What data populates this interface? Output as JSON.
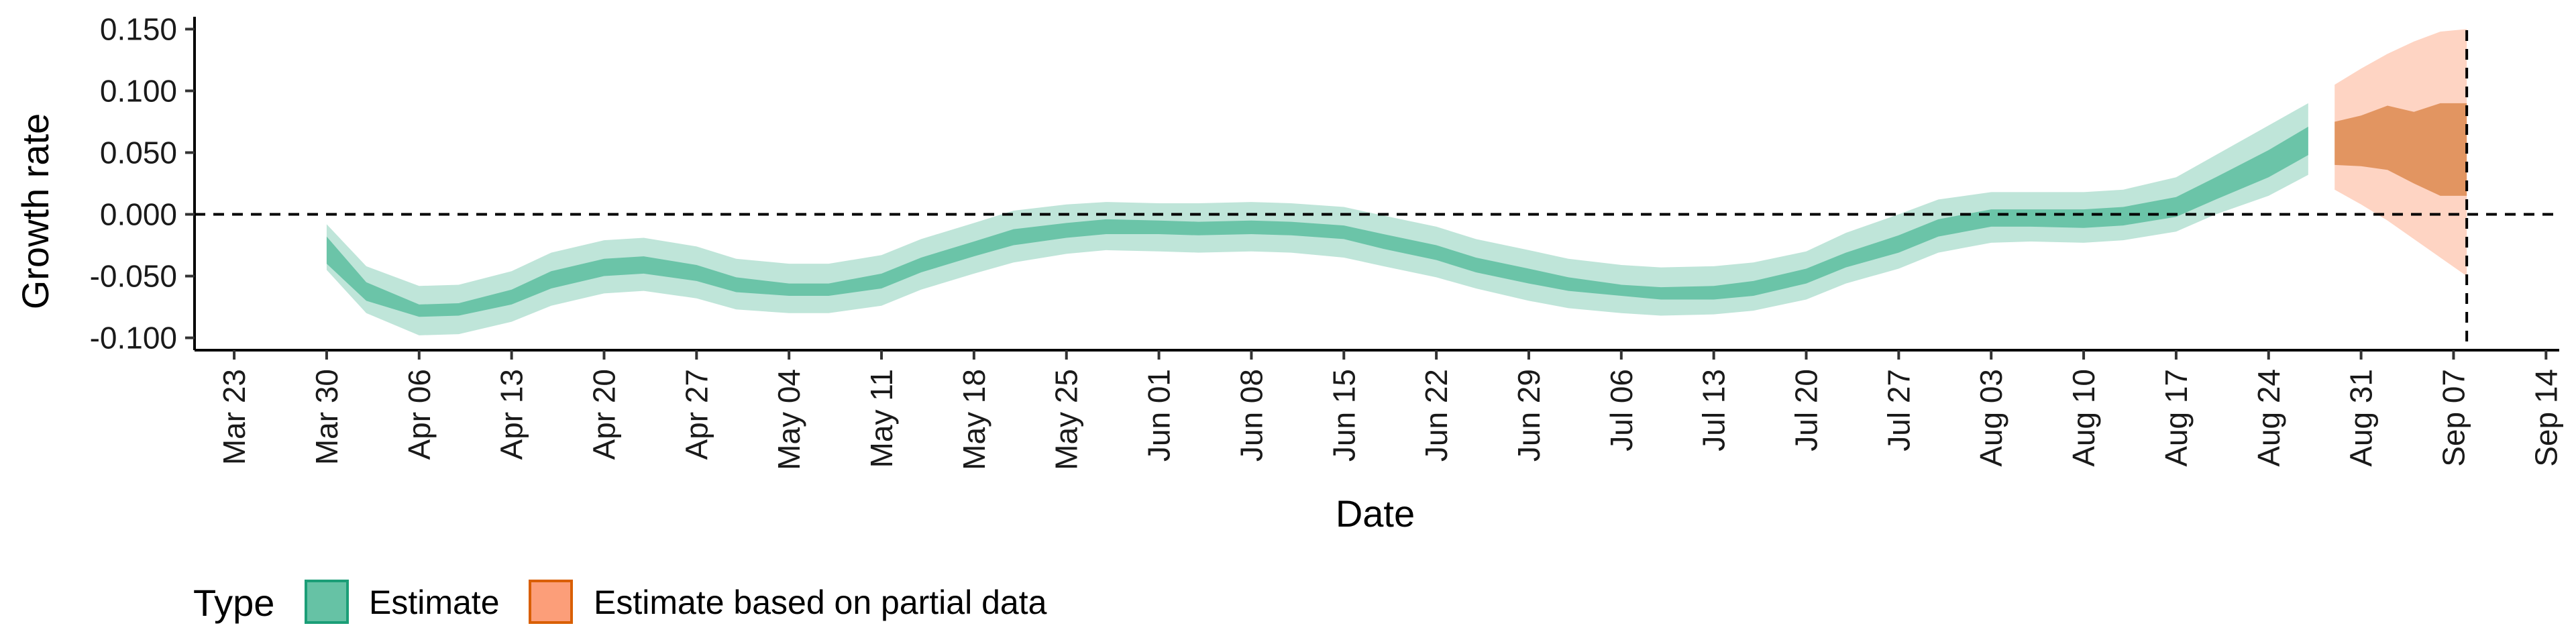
{
  "chart_data": {
    "type": "area",
    "xlabel": "Date",
    "ylabel": "Growth rate",
    "ylim": [
      -0.11,
      0.16
    ],
    "xlim": [
      "2020-03-20",
      "2020-09-15"
    ],
    "x_tick_labels": [
      "Mar 23",
      "Mar 30",
      "Apr 06",
      "Apr 13",
      "Apr 20",
      "Apr 27",
      "May 04",
      "May 11",
      "May 18",
      "May 25",
      "Jun 01",
      "Jun 08",
      "Jun 15",
      "Jun 22",
      "Jun 29",
      "Jul 06",
      "Jul 13",
      "Jul 20",
      "Jul 27",
      "Aug 03",
      "Aug 10",
      "Aug 17",
      "Aug 24",
      "Aug 31",
      "Sep 07",
      "Sep 14"
    ],
    "x_tick_dates": [
      "2020-03-23",
      "2020-03-30",
      "2020-04-06",
      "2020-04-13",
      "2020-04-20",
      "2020-04-27",
      "2020-05-04",
      "2020-05-11",
      "2020-05-18",
      "2020-05-25",
      "2020-06-01",
      "2020-06-08",
      "2020-06-15",
      "2020-06-22",
      "2020-06-29",
      "2020-07-06",
      "2020-07-13",
      "2020-07-20",
      "2020-07-27",
      "2020-08-03",
      "2020-08-10",
      "2020-08-17",
      "2020-08-24",
      "2020-08-31",
      "2020-09-07",
      "2020-09-14"
    ],
    "y_ticks": [
      -0.1,
      -0.05,
      0,
      0.05,
      0.1,
      0.15
    ],
    "y_tick_labels": [
      "-0.100",
      "-0.050",
      "0.000",
      "0.050",
      "0.100",
      "0.150"
    ],
    "reference_lines": {
      "horizontal_y": 0,
      "vertical_x": "2020-09-08",
      "style": "dashed"
    },
    "grid": false,
    "legend": {
      "title": "Type",
      "position": "bottom-left",
      "entries": [
        "Estimate",
        "Estimate based on partial data"
      ]
    },
    "series": [
      {
        "name": "Estimate",
        "color": "#66c2a5",
        "dates": [
          "2020-03-30",
          "2020-04-02",
          "2020-04-06",
          "2020-04-09",
          "2020-04-13",
          "2020-04-16",
          "2020-04-20",
          "2020-04-23",
          "2020-04-27",
          "2020-04-30",
          "2020-05-04",
          "2020-05-07",
          "2020-05-11",
          "2020-05-14",
          "2020-05-18",
          "2020-05-21",
          "2020-05-25",
          "2020-05-28",
          "2020-06-01",
          "2020-06-04",
          "2020-06-08",
          "2020-06-11",
          "2020-06-15",
          "2020-06-18",
          "2020-06-22",
          "2020-06-25",
          "2020-06-29",
          "2020-07-02",
          "2020-07-06",
          "2020-07-09",
          "2020-07-13",
          "2020-07-16",
          "2020-07-20",
          "2020-07-23",
          "2020-07-27",
          "2020-07-30",
          "2020-08-03",
          "2020-08-06",
          "2020-08-10",
          "2020-08-13",
          "2020-08-17",
          "2020-08-20",
          "2020-08-24",
          "2020-08-27"
        ],
        "median": [
          -0.028,
          -0.062,
          -0.078,
          -0.077,
          -0.067,
          -0.053,
          -0.043,
          -0.041,
          -0.048,
          -0.057,
          -0.061,
          -0.061,
          -0.054,
          -0.041,
          -0.028,
          -0.019,
          -0.013,
          -0.01,
          -0.011,
          -0.012,
          -0.011,
          -0.012,
          -0.015,
          -0.022,
          -0.031,
          -0.041,
          -0.05,
          -0.057,
          -0.062,
          -0.064,
          -0.063,
          -0.06,
          -0.05,
          -0.037,
          -0.024,
          -0.011,
          -0.003,
          -0.003,
          -0.004,
          -0.002,
          0.006,
          0.02,
          0.04,
          0.06
        ],
        "inner_lo": [
          -0.04,
          -0.07,
          -0.083,
          -0.082,
          -0.073,
          -0.06,
          -0.05,
          -0.048,
          -0.054,
          -0.063,
          -0.066,
          -0.066,
          -0.06,
          -0.047,
          -0.034,
          -0.025,
          -0.019,
          -0.016,
          -0.016,
          -0.017,
          -0.016,
          -0.017,
          -0.02,
          -0.028,
          -0.037,
          -0.047,
          -0.056,
          -0.062,
          -0.066,
          -0.069,
          -0.069,
          -0.066,
          -0.056,
          -0.043,
          -0.031,
          -0.018,
          -0.01,
          -0.01,
          -0.011,
          -0.009,
          -0.002,
          0.012,
          0.03,
          0.048
        ],
        "inner_hi": [
          -0.018,
          -0.055,
          -0.073,
          -0.072,
          -0.061,
          -0.046,
          -0.036,
          -0.034,
          -0.041,
          -0.051,
          -0.056,
          -0.056,
          -0.048,
          -0.035,
          -0.022,
          -0.012,
          -0.007,
          -0.004,
          -0.005,
          -0.006,
          -0.005,
          -0.006,
          -0.009,
          -0.016,
          -0.025,
          -0.035,
          -0.044,
          -0.051,
          -0.057,
          -0.059,
          -0.058,
          -0.054,
          -0.044,
          -0.031,
          -0.017,
          -0.004,
          0.004,
          0.004,
          0.004,
          0.006,
          0.014,
          0.03,
          0.052,
          0.071
        ],
        "outer_lo": [
          -0.045,
          -0.08,
          -0.098,
          -0.097,
          -0.087,
          -0.074,
          -0.064,
          -0.062,
          -0.068,
          -0.077,
          -0.08,
          -0.08,
          -0.074,
          -0.061,
          -0.048,
          -0.039,
          -0.032,
          -0.029,
          -0.03,
          -0.031,
          -0.03,
          -0.031,
          -0.035,
          -0.042,
          -0.051,
          -0.06,
          -0.07,
          -0.076,
          -0.08,
          -0.082,
          -0.081,
          -0.078,
          -0.069,
          -0.056,
          -0.044,
          -0.031,
          -0.023,
          -0.022,
          -0.023,
          -0.021,
          -0.014,
          0.0,
          0.015,
          0.032
        ],
        "outer_hi": [
          -0.008,
          -0.042,
          -0.058,
          -0.057,
          -0.046,
          -0.031,
          -0.021,
          -0.019,
          -0.026,
          -0.036,
          -0.04,
          -0.04,
          -0.033,
          -0.02,
          -0.007,
          0.003,
          0.008,
          0.01,
          0.009,
          0.009,
          0.01,
          0.009,
          0.006,
          -0.001,
          -0.01,
          -0.02,
          -0.029,
          -0.036,
          -0.041,
          -0.043,
          -0.042,
          -0.039,
          -0.03,
          -0.015,
          0.0,
          0.012,
          0.018,
          0.018,
          0.018,
          0.02,
          0.03,
          0.048,
          0.072,
          0.09
        ]
      },
      {
        "name": "Estimate based on partial data",
        "color": "#fc8d62",
        "dates": [
          "2020-08-29",
          "2020-08-31",
          "2020-09-02",
          "2020-09-04",
          "2020-09-06",
          "2020-09-08"
        ],
        "inner_lo": [
          0.04,
          0.039,
          0.036,
          0.025,
          0.015,
          0.015
        ],
        "inner_hi": [
          0.075,
          0.08,
          0.088,
          0.083,
          0.09,
          0.09
        ],
        "outer_lo": [
          0.02,
          0.008,
          -0.005,
          -0.02,
          -0.035,
          -0.05
        ],
        "outer_hi": [
          0.105,
          0.118,
          0.13,
          0.14,
          0.148,
          0.15
        ]
      }
    ]
  }
}
